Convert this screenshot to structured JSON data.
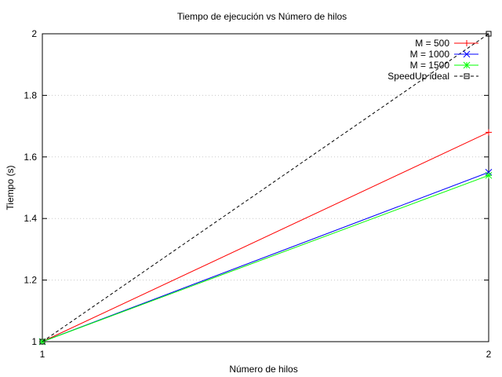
{
  "chart_data": {
    "type": "line",
    "title": "Tiempo de ejecución vs Número de hilos",
    "xlabel": "Número de hilos",
    "ylabel": "Tiempo (s)",
    "xlim": [
      1,
      2
    ],
    "ylim": [
      1,
      2
    ],
    "x_ticks": [
      "1",
      "2"
    ],
    "y_ticks": [
      "1",
      "1.2",
      "1.4",
      "1.6",
      "1.8",
      "2"
    ],
    "grid": true,
    "legend_position": "top-right",
    "x": [
      1,
      2
    ],
    "series": [
      {
        "name": "M = 500",
        "values": [
          1,
          1.68
        ],
        "color": "#ff0000",
        "marker": "plus",
        "dash": "solid"
      },
      {
        "name": "M = 1000",
        "values": [
          1,
          1.55
        ],
        "color": "#0000ff",
        "marker": "cross",
        "dash": "solid"
      },
      {
        "name": "M = 1500",
        "values": [
          1,
          1.54
        ],
        "color": "#00ff00",
        "marker": "star",
        "dash": "solid"
      },
      {
        "name": "SpeedUp ideal",
        "values": [
          1,
          2
        ],
        "color": "#000000",
        "marker": "square",
        "dash": "dashed"
      }
    ]
  }
}
